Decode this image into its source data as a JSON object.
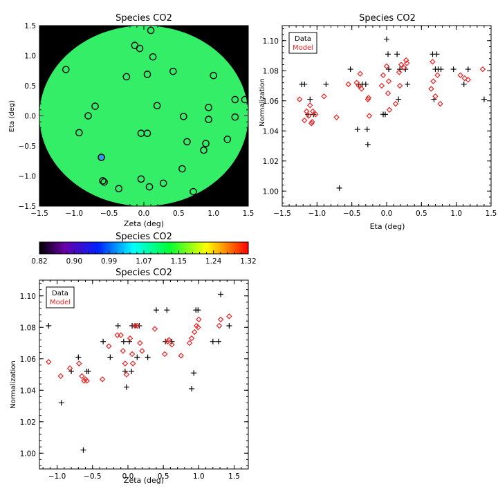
{
  "chart_data": [
    {
      "id": "map",
      "type": "scatter",
      "title": "Species CO2",
      "xlabel": "Zeta (deg)",
      "ylabel": "Eta (deg)",
      "xlim": [
        -1.5,
        1.5
      ],
      "ylim": [
        -1.5,
        1.5
      ],
      "x_ticks": [
        "−1.5",
        "−1.0",
        "−0.5",
        "0.0",
        "0.5",
        "1.0",
        "1.5"
      ],
      "y_ticks": [
        "−1.5",
        "−1.0",
        "−0.5",
        "0.0",
        "0.5",
        "1.0",
        "1.5"
      ],
      "x_tick_values": [
        -1.5,
        -1.0,
        -0.5,
        0.0,
        0.5,
        1.0,
        1.5
      ],
      "y_tick_values": [
        -1.5,
        -1.0,
        -0.5,
        0.0,
        0.5,
        1.0,
        1.5
      ],
      "background_color": "#000000",
      "field_color": "#33ee66",
      "marker_color": "#000000",
      "highlight_color": "#3399ee",
      "points": [
        [
          0.1,
          1.42
        ],
        [
          -0.13,
          1.17
        ],
        [
          -0.06,
          1.12
        ],
        [
          0.13,
          0.98
        ],
        [
          -1.12,
          0.77
        ],
        [
          0.42,
          0.74
        ],
        [
          0.05,
          0.69
        ],
        [
          -0.25,
          0.65
        ],
        [
          1.0,
          0.67
        ],
        [
          -0.7,
          0.16
        ],
        [
          0.19,
          0.17
        ],
        [
          0.93,
          0.14
        ],
        [
          1.31,
          0.27
        ],
        [
          1.45,
          0.27
        ],
        [
          -0.8,
          0.0
        ],
        [
          0.57,
          -0.01
        ],
        [
          0.93,
          -0.06
        ],
        [
          1.31,
          -0.02
        ],
        [
          -0.93,
          -0.28
        ],
        [
          -0.04,
          -0.29
        ],
        [
          0.05,
          -0.29
        ],
        [
          0.62,
          -0.43
        ],
        [
          0.89,
          -0.46
        ],
        [
          1.2,
          -0.39
        ],
        [
          0.86,
          -0.57
        ],
        [
          -0.59,
          -1.08
        ],
        [
          -0.57,
          -1.1
        ],
        [
          -0.04,
          -1.05
        ],
        [
          0.55,
          -0.88
        ],
        [
          0.08,
          -1.18
        ],
        [
          0.28,
          -1.12
        ],
        [
          -0.36,
          -1.21
        ],
        [
          0.71,
          -1.26
        ]
      ],
      "highlight_points": [
        [
          -0.61,
          -0.69
        ]
      ]
    },
    {
      "id": "eta",
      "type": "scatter",
      "title": "Species CO2",
      "xlabel": "Eta (deg)",
      "ylabel": "Normalization",
      "xlim": [
        -1.5,
        1.5
      ],
      "ylim": [
        0.99,
        1.11
      ],
      "x_ticks": [
        "−1.5",
        "−1.0",
        "−0.5",
        "0.0",
        "0.5",
        "1.0",
        "1.5"
      ],
      "y_ticks": [
        "1.00",
        "1.02",
        "1.04",
        "1.06",
        "1.08",
        "1.10"
      ],
      "x_tick_values": [
        -1.5,
        -1.0,
        -0.5,
        0.0,
        0.5,
        1.0,
        1.5
      ],
      "y_tick_values": [
        1.0,
        1.02,
        1.04,
        1.06,
        1.08,
        1.1
      ],
      "legend": {
        "data": "Data",
        "model": "Model",
        "position": "top-left"
      },
      "series": [
        {
          "name": "Data",
          "marker": "plus",
          "color": "#000000",
          "points": [
            [
              -1.22,
              1.071
            ],
            [
              -1.18,
              1.071
            ],
            [
              -0.87,
              1.071
            ],
            [
              -1.1,
              1.061
            ],
            [
              -1.05,
              1.051
            ],
            [
              -1.13,
              1.051
            ],
            [
              -0.68,
              1.002
            ],
            [
              -0.52,
              1.081
            ],
            [
              -0.42,
              1.041
            ],
            [
              -0.4,
              1.071
            ],
            [
              -0.35,
              1.071
            ],
            [
              -0.3,
              1.071
            ],
            [
              -0.28,
              1.041
            ],
            [
              -0.27,
              1.031
            ],
            [
              -0.05,
              1.051
            ],
            [
              -0.02,
              1.051
            ],
            [
              0.0,
              1.101
            ],
            [
              0.02,
              1.091
            ],
            [
              0.03,
              1.081
            ],
            [
              0.15,
              1.091
            ],
            [
              0.17,
              1.061
            ],
            [
              0.19,
              1.081
            ],
            [
              0.27,
              1.081
            ],
            [
              0.3,
              1.071
            ],
            [
              0.66,
              1.091
            ],
            [
              0.68,
              1.061
            ],
            [
              0.7,
              1.081
            ],
            [
              0.72,
              1.091
            ],
            [
              0.74,
              1.081
            ],
            [
              0.78,
              1.081
            ],
            [
              0.96,
              1.081
            ],
            [
              1.11,
              1.071
            ],
            [
              1.17,
              1.081
            ],
            [
              1.4,
              1.061
            ]
          ]
        },
        {
          "name": "Model",
          "marker": "diamond",
          "color": "#ee2222",
          "points": [
            [
              -1.25,
              1.061
            ],
            [
              -1.18,
              1.047
            ],
            [
              -1.15,
              1.053
            ],
            [
              -1.12,
              1.05
            ],
            [
              -1.1,
              1.057
            ],
            [
              -1.08,
              1.045
            ],
            [
              -1.07,
              1.046
            ],
            [
              -1.06,
              1.053
            ],
            [
              -1.02,
              1.051
            ],
            [
              -0.9,
              1.063
            ],
            [
              -0.72,
              1.049
            ],
            [
              -0.55,
              1.071
            ],
            [
              -0.43,
              1.072
            ],
            [
              -0.4,
              1.07
            ],
            [
              -0.38,
              1.078
            ],
            [
              -0.36,
              1.068
            ],
            [
              -0.27,
              1.061
            ],
            [
              -0.26,
              1.062
            ],
            [
              -0.25,
              1.05
            ],
            [
              -0.07,
              1.07
            ],
            [
              -0.05,
              1.077
            ],
            [
              0.0,
              1.083
            ],
            [
              0.02,
              1.065
            ],
            [
              0.03,
              1.073
            ],
            [
              0.04,
              1.054
            ],
            [
              0.13,
              1.058
            ],
            [
              0.18,
              1.079
            ],
            [
              0.19,
              1.07
            ],
            [
              0.21,
              1.084
            ],
            [
              0.25,
              1.082
            ],
            [
              0.28,
              1.087
            ],
            [
              0.29,
              1.085
            ],
            [
              0.64,
              1.068
            ],
            [
              0.66,
              1.086
            ],
            [
              0.67,
              1.073
            ],
            [
              0.7,
              1.063
            ],
            [
              0.73,
              1.077
            ],
            [
              0.77,
              1.058
            ],
            [
              1.06,
              1.077
            ],
            [
              1.12,
              1.075
            ],
            [
              1.17,
              1.074
            ],
            [
              1.38,
              1.081
            ]
          ]
        }
      ]
    },
    {
      "id": "colorbar",
      "type": "colorbar",
      "title": "Species CO2",
      "tick_labels": [
        "0.82",
        "0.90",
        "0.99",
        "1.07",
        "1.15",
        "1.24",
        "1.32"
      ],
      "range": [
        0.82,
        1.32
      ],
      "colors": [
        "#000000",
        "#5a00a0",
        "#0000ff",
        "#00ffff",
        "#00ff00",
        "#ffff00",
        "#ff0000"
      ]
    },
    {
      "id": "zeta",
      "type": "scatter",
      "title": "Species CO2",
      "xlabel": "Zeta (deg)",
      "ylabel": "Normalization",
      "xlim": [
        -1.25,
        1.7
      ],
      "ylim": [
        0.99,
        1.11
      ],
      "x_ticks": [
        "−1.0",
        "−0.5",
        "0.0",
        "0.5",
        "1.0",
        "1.5"
      ],
      "y_ticks": [
        "1.00",
        "1.02",
        "1.04",
        "1.06",
        "1.08",
        "1.10"
      ],
      "x_tick_values": [
        -1.0,
        -0.5,
        0.0,
        0.5,
        1.0,
        1.5
      ],
      "y_tick_values": [
        1.0,
        1.02,
        1.04,
        1.06,
        1.08,
        1.1
      ],
      "legend": {
        "data": "Data",
        "model": "Model",
        "position": "top-left"
      },
      "series": [
        {
          "name": "Data",
          "marker": "plus",
          "color": "#000000",
          "points": [
            [
              -1.12,
              1.081
            ],
            [
              -0.94,
              1.032
            ],
            [
              -0.8,
              1.052
            ],
            [
              -0.7,
              1.061
            ],
            [
              -0.63,
              1.002
            ],
            [
              -0.58,
              1.052
            ],
            [
              -0.56,
              1.052
            ],
            [
              -0.35,
              1.071
            ],
            [
              -0.25,
              1.061
            ],
            [
              -0.14,
              1.081
            ],
            [
              -0.06,
              1.071
            ],
            [
              -0.04,
              1.052
            ],
            [
              -0.02,
              1.042
            ],
            [
              0.02,
              1.071
            ],
            [
              0.05,
              1.052
            ],
            [
              0.06,
              1.081
            ],
            [
              0.1,
              1.081
            ],
            [
              0.13,
              1.061
            ],
            [
              0.16,
              1.081
            ],
            [
              0.28,
              1.061
            ],
            [
              0.4,
              1.091
            ],
            [
              0.53,
              1.071
            ],
            [
              0.55,
              1.091
            ],
            [
              0.62,
              1.071
            ],
            [
              0.9,
              1.041
            ],
            [
              0.93,
              1.051
            ],
            [
              0.96,
              1.091
            ],
            [
              0.99,
              1.091
            ],
            [
              1.2,
              1.071
            ],
            [
              1.28,
              1.071
            ],
            [
              1.31,
              1.101
            ],
            [
              1.43,
              1.081
            ]
          ]
        },
        {
          "name": "Model",
          "marker": "diamond",
          "color": "#ee2222",
          "points": [
            [
              -1.12,
              1.058
            ],
            [
              -0.95,
              1.049
            ],
            [
              -0.82,
              1.054
            ],
            [
              -0.69,
              1.057
            ],
            [
              -0.65,
              1.049
            ],
            [
              -0.62,
              1.046
            ],
            [
              -0.6,
              1.047
            ],
            [
              -0.58,
              1.046
            ],
            [
              -0.36,
              1.047
            ],
            [
              -0.27,
              1.068
            ],
            [
              -0.15,
              1.075
            ],
            [
              -0.1,
              1.075
            ],
            [
              -0.07,
              1.065
            ],
            [
              -0.04,
              1.057
            ],
            [
              -0.02,
              1.05
            ],
            [
              0.03,
              1.073
            ],
            [
              0.06,
              1.063
            ],
            [
              0.07,
              1.057
            ],
            [
              0.1,
              1.081
            ],
            [
              0.13,
              1.081
            ],
            [
              0.17,
              1.07
            ],
            [
              0.2,
              1.065
            ],
            [
              0.38,
              1.079
            ],
            [
              0.52,
              1.063
            ],
            [
              0.56,
              1.071
            ],
            [
              0.58,
              1.072
            ],
            [
              0.62,
              1.069
            ],
            [
              0.75,
              1.062
            ],
            [
              0.87,
              1.07
            ],
            [
              0.9,
              1.073
            ],
            [
              0.94,
              1.077
            ],
            [
              0.97,
              1.081
            ],
            [
              0.99,
              1.08
            ],
            [
              1.0,
              1.085
            ],
            [
              1.29,
              1.081
            ],
            [
              1.31,
              1.085
            ],
            [
              1.43,
              1.087
            ]
          ]
        }
      ]
    }
  ]
}
